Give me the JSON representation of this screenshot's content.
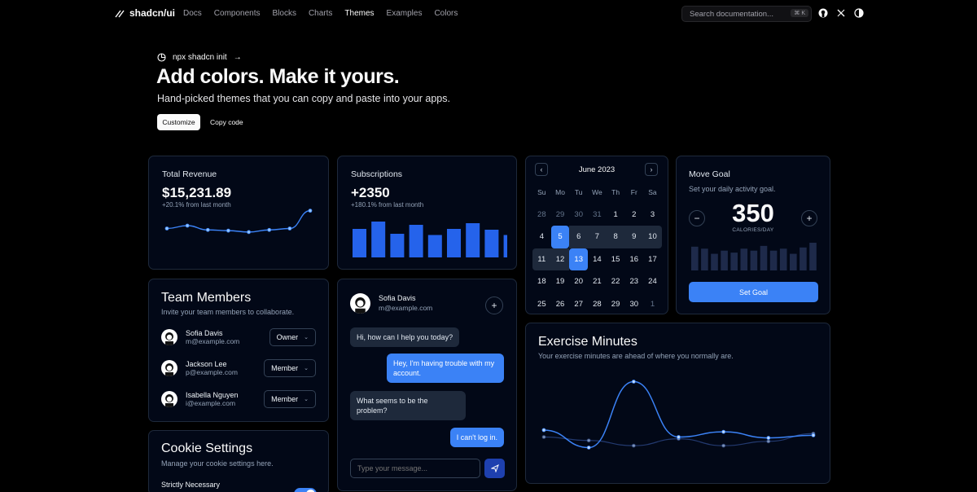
{
  "nav": {
    "brand": "shadcn/ui",
    "links": [
      "Docs",
      "Components",
      "Blocks",
      "Charts",
      "Themes",
      "Examples",
      "Colors"
    ],
    "active_index": 4,
    "search_placeholder": "Search documentation...",
    "search_shortcut": "⌘ K",
    "icons": [
      "github-icon",
      "x-icon",
      "theme-toggle-icon"
    ]
  },
  "hero": {
    "announcement": "npx shadcn init",
    "title": "Add colors. Make it yours.",
    "subtitle": "Hand-picked themes that you can copy and paste into your apps.",
    "primary_button": "Customize",
    "secondary_button": "Copy code"
  },
  "revenue": {
    "title": "Total Revenue",
    "value": "$15,231.89",
    "delta": "+20.1% from last month",
    "points": [
      20,
      24,
      18,
      17,
      15,
      18,
      20,
      45
    ]
  },
  "subscriptions": {
    "title": "Subscriptions",
    "value": "+2350",
    "delta": "+180.1% from last month",
    "bars": [
      70,
      88,
      58,
      80,
      55,
      70,
      84,
      68,
      55
    ]
  },
  "calendar": {
    "month": "June 2023",
    "weekdays": [
      "Su",
      "Mo",
      "Tu",
      "We",
      "Th",
      "Fr",
      "Sa"
    ],
    "days": [
      {
        "d": "28",
        "m": true
      },
      {
        "d": "29",
        "m": true
      },
      {
        "d": "30",
        "m": true
      },
      {
        "d": "31",
        "m": true
      },
      {
        "d": "1"
      },
      {
        "d": "2"
      },
      {
        "d": "3"
      },
      {
        "d": "4"
      },
      {
        "d": "5",
        "s": "sel"
      },
      {
        "d": "6",
        "s": "range"
      },
      {
        "d": "7",
        "s": "range"
      },
      {
        "d": "8",
        "s": "range"
      },
      {
        "d": "9",
        "s": "range"
      },
      {
        "d": "10",
        "s": "range-end"
      },
      {
        "d": "11",
        "s": "range-start"
      },
      {
        "d": "12",
        "s": "range"
      },
      {
        "d": "13",
        "s": "sel"
      },
      {
        "d": "14"
      },
      {
        "d": "15"
      },
      {
        "d": "16"
      },
      {
        "d": "17"
      },
      {
        "d": "18"
      },
      {
        "d": "19"
      },
      {
        "d": "20"
      },
      {
        "d": "21"
      },
      {
        "d": "22"
      },
      {
        "d": "23"
      },
      {
        "d": "24"
      },
      {
        "d": "25"
      },
      {
        "d": "26"
      },
      {
        "d": "27"
      },
      {
        "d": "28"
      },
      {
        "d": "29"
      },
      {
        "d": "30"
      },
      {
        "d": "1",
        "m": true
      }
    ]
  },
  "move_goal": {
    "title": "Move Goal",
    "description": "Set your daily activity goal.",
    "value": "350",
    "unit": "CALORIES/DAY",
    "button": "Set Goal",
    "bars": [
      60,
      55,
      42,
      50,
      45,
      55,
      50,
      62,
      50,
      55,
      42,
      58,
      70
    ]
  },
  "team": {
    "title": "Team Members",
    "description": "Invite your team members to collaborate.",
    "members": [
      {
        "name": "Sofia Davis",
        "email": "m@example.com",
        "role": "Owner"
      },
      {
        "name": "Jackson Lee",
        "email": "p@example.com",
        "role": "Member"
      },
      {
        "name": "Isabella Nguyen",
        "email": "i@example.com",
        "role": "Member"
      }
    ]
  },
  "chat": {
    "name": "Sofia Davis",
    "email": "m@example.com",
    "messages": [
      {
        "from": "in",
        "text": "Hi, how can I help you today?"
      },
      {
        "from": "out",
        "text": "Hey, I'm having trouble with my account."
      },
      {
        "from": "in",
        "text": "What seems to be the problem?"
      },
      {
        "from": "out",
        "text": "I can't log in."
      }
    ],
    "input_placeholder": "Type your message..."
  },
  "exercise": {
    "title": "Exercise Minutes",
    "description": "Your exercise minutes are ahead of where you normally are.",
    "current": [
      240,
      139,
      520,
      200,
      230,
      195,
      210
    ],
    "average": [
      200,
      180,
      150,
      190,
      150,
      175,
      220
    ]
  },
  "cookie": {
    "title": "Cookie Settings",
    "description": "Manage your cookie settings here.",
    "option": "Strictly Necessary"
  },
  "colors": {
    "accent": "#3b82f6",
    "card": "#020817",
    "border": "#1e293b"
  }
}
